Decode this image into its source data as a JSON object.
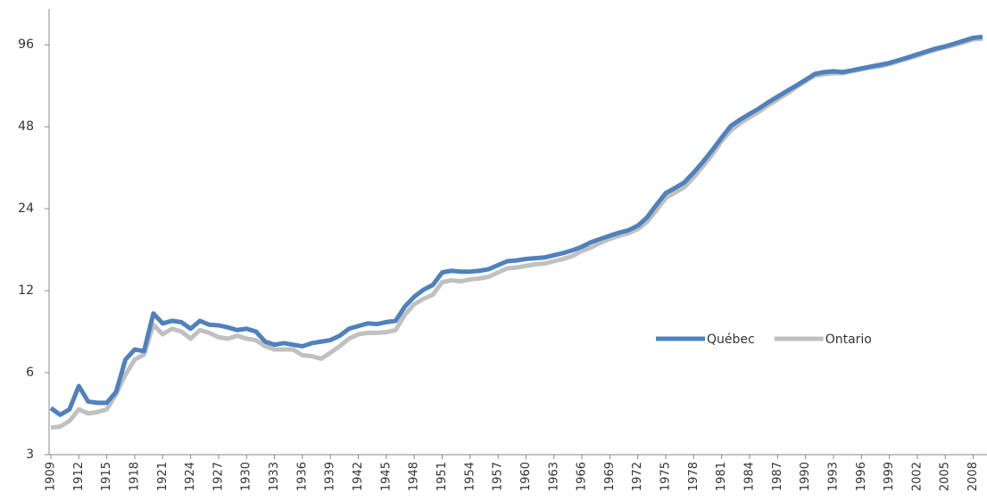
{
  "chart_data": {
    "type": "line",
    "yscale": "log",
    "x": [
      1909,
      1910,
      1911,
      1912,
      1913,
      1914,
      1915,
      1916,
      1917,
      1918,
      1919,
      1920,
      1921,
      1922,
      1923,
      1924,
      1925,
      1926,
      1927,
      1928,
      1929,
      1930,
      1931,
      1932,
      1933,
      1934,
      1935,
      1936,
      1937,
      1938,
      1939,
      1940,
      1941,
      1942,
      1943,
      1944,
      1945,
      1946,
      1947,
      1948,
      1949,
      1950,
      1951,
      1952,
      1953,
      1954,
      1955,
      1956,
      1957,
      1958,
      1959,
      1960,
      1961,
      1962,
      1963,
      1964,
      1965,
      1966,
      1967,
      1968,
      1969,
      1970,
      1971,
      1972,
      1973,
      1974,
      1975,
      1976,
      1977,
      1978,
      1979,
      1980,
      1981,
      1982,
      1983,
      1984,
      1985,
      1986,
      1987,
      1988,
      1989,
      1990,
      1991,
      1992,
      1993,
      1994,
      1995,
      1996,
      1997,
      1998,
      1999,
      2000,
      2001,
      2002,
      2003,
      2004,
      2005,
      2006,
      2007,
      2008,
      2009
    ],
    "series": [
      {
        "name": "Québec",
        "color": "#4f81bd",
        "values": [
          4.45,
          4.2,
          4.4,
          5.36,
          4.7,
          4.65,
          4.65,
          5.1,
          6.7,
          7.3,
          7.2,
          9.9,
          9.1,
          9.3,
          9.2,
          8.7,
          9.3,
          9.0,
          8.95,
          8.8,
          8.6,
          8.7,
          8.5,
          7.8,
          7.6,
          7.7,
          7.6,
          7.5,
          7.7,
          7.8,
          7.9,
          8.2,
          8.7,
          8.9,
          9.1,
          9.05,
          9.2,
          9.3,
          10.5,
          11.4,
          12.1,
          12.6,
          14.0,
          14.2,
          14.1,
          14.1,
          14.2,
          14.4,
          14.9,
          15.4,
          15.5,
          15.7,
          15.8,
          15.9,
          16.2,
          16.5,
          16.9,
          17.4,
          18.1,
          18.6,
          19.1,
          19.6,
          20.0,
          20.8,
          22.3,
          24.8,
          27.4,
          28.6,
          30.0,
          32.6,
          35.7,
          39.4,
          43.8,
          48.4,
          51.0,
          53.5,
          56.0,
          59.0,
          61.9,
          64.9,
          68,
          71.3,
          75.0,
          76.2,
          76.7,
          76.2,
          77.3,
          78.6,
          79.8,
          81.0,
          82.3,
          84.3,
          86.3,
          88.5,
          90.7,
          93,
          94.7,
          97.0,
          99.4,
          101.8,
          102.6
        ]
      },
      {
        "name": "Ontario",
        "color": "#c0c0c0",
        "values": [
          3.77,
          3.8,
          3.99,
          4.4,
          4.25,
          4.3,
          4.4,
          5.0,
          5.9,
          6.7,
          7.0,
          9.0,
          8.3,
          8.7,
          8.5,
          8.0,
          8.6,
          8.4,
          8.1,
          8.0,
          8.2,
          8.0,
          7.9,
          7.5,
          7.3,
          7.3,
          7.3,
          6.95,
          6.9,
          6.75,
          7.1,
          7.5,
          8.0,
          8.3,
          8.4,
          8.4,
          8.45,
          8.6,
          9.8,
          10.7,
          11.2,
          11.6,
          12.9,
          13.1,
          13.0,
          13.2,
          13.3,
          13.5,
          14.0,
          14.5,
          14.6,
          14.8,
          15.0,
          15.1,
          15.4,
          15.7,
          16.1,
          16.8,
          17.3,
          18.0,
          18.6,
          19.1,
          19.5,
          20.2,
          21.5,
          23.7,
          26.3,
          27.5,
          28.8,
          31.3,
          34.4,
          38.0,
          42.5,
          46.5,
          49.5,
          52.0,
          54.5,
          57.5,
          60.5,
          63.5,
          67,
          70.5,
          74.0,
          74.8,
          75.5,
          75.5,
          76.8,
          78.0,
          79.2,
          80.0,
          81.5,
          83.5,
          85.5,
          87.5,
          90.0,
          92.0,
          94.0,
          95.8,
          98.0,
          100.5,
          101.0
        ]
      }
    ],
    "xlim": [
      1909,
      2009
    ],
    "xticks": [
      1909,
      1912,
      1915,
      1918,
      1921,
      1924,
      1927,
      1930,
      1933,
      1936,
      1939,
      1942,
      1945,
      1948,
      1951,
      1954,
      1957,
      1960,
      1963,
      1966,
      1969,
      1972,
      1975,
      1978,
      1981,
      1984,
      1987,
      1990,
      1993,
      1996,
      1999,
      2002,
      2005,
      2008
    ],
    "ylim": [
      3,
      130
    ],
    "yticks": [
      3,
      6,
      12,
      24,
      48,
      96
    ]
  }
}
